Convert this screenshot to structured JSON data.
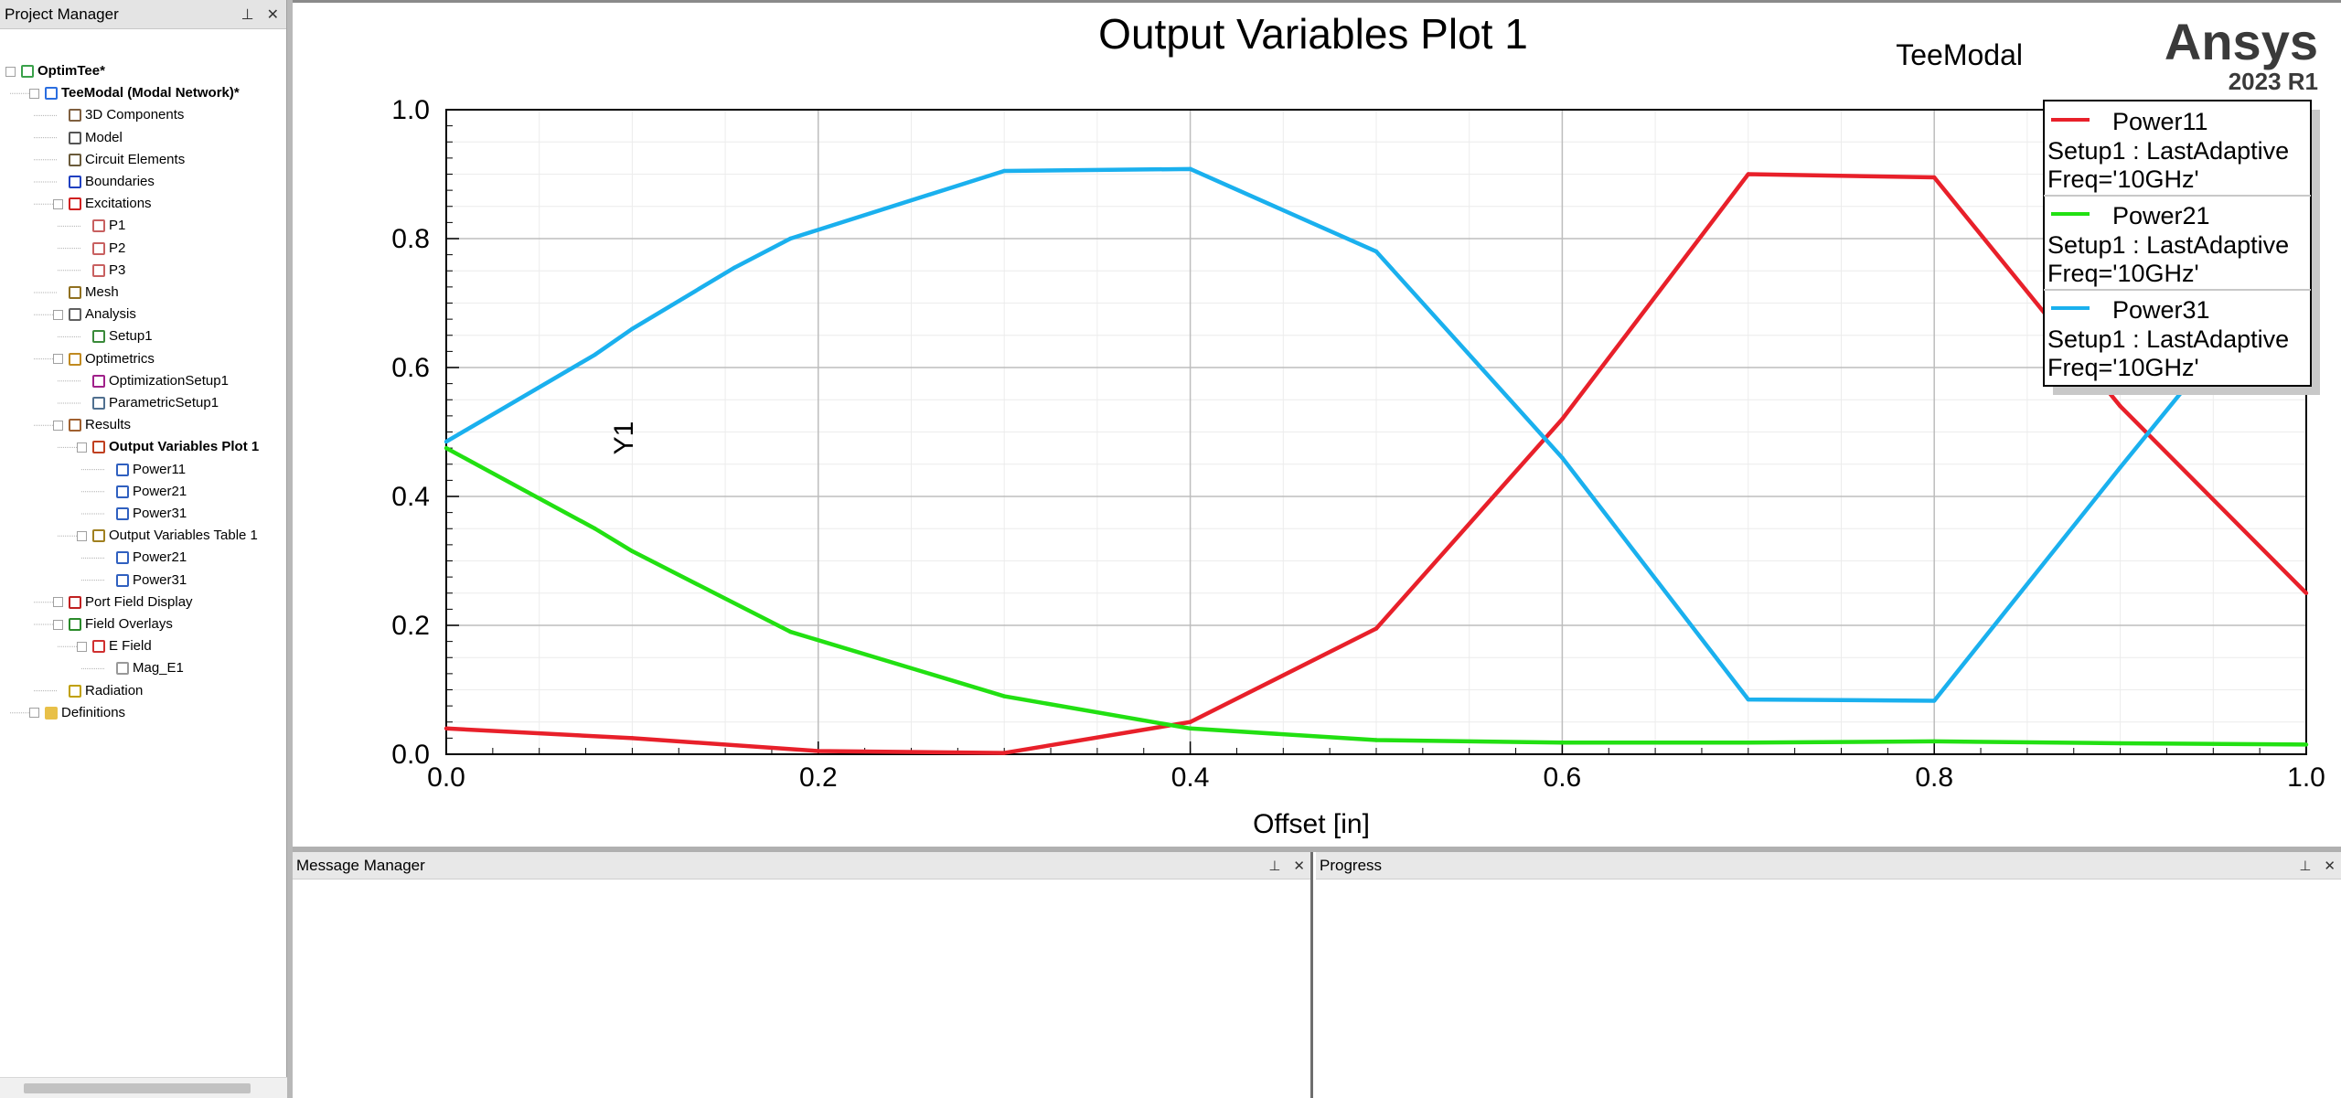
{
  "project_manager": {
    "title": "Project Manager",
    "pin_glyph": "⊥",
    "close_glyph": "✕",
    "tree": [
      {
        "label": "OptimTee*",
        "level": 0,
        "expander": "−",
        "icon": "project-icon",
        "bold": true
      },
      {
        "label": "TeeModal (Modal Network)*",
        "level": 1,
        "expander": "−",
        "icon": "design-icon",
        "bold": true
      },
      {
        "label": "3D Components",
        "level": 2,
        "expander": "",
        "icon": "components-icon"
      },
      {
        "label": "Model",
        "level": 2,
        "expander": "",
        "icon": "model-icon"
      },
      {
        "label": "Circuit Elements",
        "level": 2,
        "expander": "",
        "icon": "circuit-icon"
      },
      {
        "label": "Boundaries",
        "level": 2,
        "expander": "",
        "icon": "boundaries-icon"
      },
      {
        "label": "Excitations",
        "level": 2,
        "expander": "−",
        "icon": "excitations-icon"
      },
      {
        "label": "P1",
        "level": 3,
        "expander": "",
        "icon": "port-icon"
      },
      {
        "label": "P2",
        "level": 3,
        "expander": "",
        "icon": "port-icon"
      },
      {
        "label": "P3",
        "level": 3,
        "expander": "",
        "icon": "port-icon"
      },
      {
        "label": "Mesh",
        "level": 2,
        "expander": "",
        "icon": "mesh-icon"
      },
      {
        "label": "Analysis",
        "level": 2,
        "expander": "−",
        "icon": "analysis-icon"
      },
      {
        "label": "Setup1",
        "level": 3,
        "expander": "",
        "icon": "setup-icon"
      },
      {
        "label": "Optimetrics",
        "level": 2,
        "expander": "−",
        "icon": "optimetrics-icon"
      },
      {
        "label": "OptimizationSetup1",
        "level": 3,
        "expander": "",
        "icon": "optimization-icon"
      },
      {
        "label": "ParametricSetup1",
        "level": 3,
        "expander": "",
        "icon": "parametric-icon"
      },
      {
        "label": "Results",
        "level": 2,
        "expander": "−",
        "icon": "results-icon"
      },
      {
        "label": "Output Variables Plot 1",
        "level": 3,
        "expander": "−",
        "icon": "plot-icon",
        "bold": true
      },
      {
        "label": "Power11",
        "level": 4,
        "expander": "",
        "icon": "trace-icon"
      },
      {
        "label": "Power21",
        "level": 4,
        "expander": "",
        "icon": "trace-icon"
      },
      {
        "label": "Power31",
        "level": 4,
        "expander": "",
        "icon": "trace-icon"
      },
      {
        "label": "Output Variables Table 1",
        "level": 3,
        "expander": "−",
        "icon": "table-icon"
      },
      {
        "label": "Power21",
        "level": 4,
        "expander": "",
        "icon": "trace-icon"
      },
      {
        "label": "Power31",
        "level": 4,
        "expander": "",
        "icon": "trace-icon"
      },
      {
        "label": "Port Field Display",
        "level": 2,
        "expander": "+",
        "icon": "port-field-icon"
      },
      {
        "label": "Field Overlays",
        "level": 2,
        "expander": "−",
        "icon": "field-overlays-icon"
      },
      {
        "label": "E Field",
        "level": 3,
        "expander": "−",
        "icon": "efield-icon"
      },
      {
        "label": "Mag_E1",
        "level": 4,
        "expander": "",
        "icon": "mag-icon"
      },
      {
        "label": "Radiation",
        "level": 2,
        "expander": "",
        "icon": "radiation-icon"
      },
      {
        "label": "Definitions",
        "level": 1,
        "expander": "+",
        "icon": "folder-icon"
      }
    ]
  },
  "plot": {
    "brand_design": "TeeModal",
    "brand_name": "Ansys",
    "brand_version": "2023 R1",
    "legend": [
      {
        "name": "Power11",
        "line2": "Setup1 : LastAdaptive",
        "line3": "Freq='10GHz'",
        "color": "#e8202a"
      },
      {
        "name": "Power21",
        "line2": "Setup1 : LastAdaptive",
        "line3": "Freq='10GHz'",
        "color": "#22e012"
      },
      {
        "name": "Power31",
        "line2": "Setup1 : LastAdaptive",
        "line3": "Freq='10GHz'",
        "color": "#1ab0ee"
      }
    ]
  },
  "chart_data": {
    "type": "line",
    "title": "Output Variables Plot 1",
    "xlabel": "Offset [in]",
    "ylabel": "Y1",
    "xlim": [
      0.0,
      1.0
    ],
    "ylim": [
      0.0,
      1.0
    ],
    "xticks": [
      "0.0",
      "0.2",
      "0.4",
      "0.6",
      "0.8",
      "1.0"
    ],
    "yticks": [
      "0.0",
      "0.2",
      "0.4",
      "0.6",
      "0.8",
      "1.0"
    ],
    "grid": true,
    "legend_position": "top-right",
    "series": [
      {
        "name": "Power11",
        "color": "#e8202a",
        "x": [
          0.0,
          0.1,
          0.2,
          0.3,
          0.4,
          0.5,
          0.6,
          0.7,
          0.8,
          0.9,
          1.0
        ],
        "y": [
          0.04,
          0.025,
          0.005,
          0.002,
          0.05,
          0.195,
          0.52,
          0.9,
          0.895,
          0.54,
          0.25
        ]
      },
      {
        "name": "Power21",
        "color": "#22e012",
        "x": [
          0.0,
          0.08,
          0.1,
          0.185,
          0.3,
          0.4,
          0.5,
          0.6,
          0.7,
          0.8,
          0.9,
          1.0
        ],
        "y": [
          0.475,
          0.35,
          0.315,
          0.19,
          0.09,
          0.04,
          0.022,
          0.018,
          0.018,
          0.02,
          0.017,
          0.015
        ]
      },
      {
        "name": "Power31",
        "color": "#1ab0ee",
        "x": [
          0.0,
          0.08,
          0.1,
          0.155,
          0.185,
          0.3,
          0.4,
          0.5,
          0.6,
          0.7,
          0.8,
          0.9,
          1.0
        ],
        "y": [
          0.485,
          0.62,
          0.66,
          0.755,
          0.8,
          0.905,
          0.908,
          0.78,
          0.46,
          0.085,
          0.083,
          0.445,
          0.8
        ]
      }
    ]
  },
  "message_manager": {
    "title": "Message Manager",
    "pin_glyph": "⊥",
    "close_glyph": "✕"
  },
  "progress": {
    "title": "Progress",
    "pin_glyph": "⊥",
    "close_glyph": "✕"
  }
}
